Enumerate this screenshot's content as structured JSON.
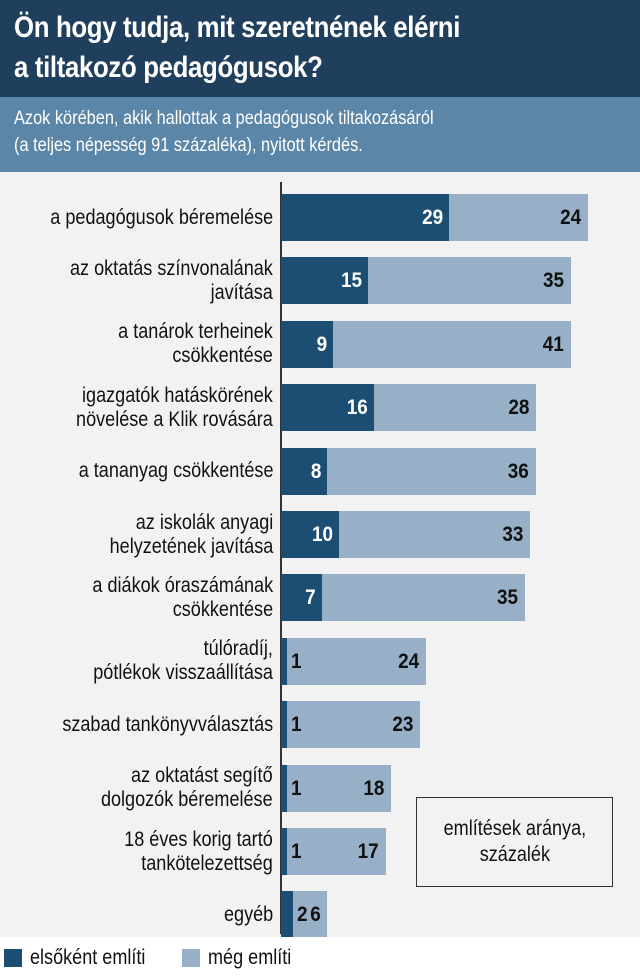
{
  "title_lines": [
    "Ön hogy tudja, mit szeretnének elérni",
    "a tiltakozó pedagógusok?"
  ],
  "subtitle_lines": [
    "Azok körében, akik hallottak a pedagógusok tiltakozásáról",
    "(a teljes népesség 91 százaléka), nyitott kérdés."
  ],
  "note": "említések aránya,\nszázalék",
  "colors": {
    "header": "#1f3f5d",
    "subheader": "#5b86a8",
    "first": "#1c4e74",
    "more": "#97b0c7",
    "background": "#f2f2f2"
  },
  "chart_data": {
    "type": "bar",
    "orientation": "horizontal",
    "stacked": true,
    "categories": [
      "a pedagógusok béremelése",
      "az oktatás színvonalának\njavítása",
      "a tanárok terheinek\ncsökkentése",
      "igazgatók hatáskörének\nnövelése a Klik rovására",
      "a tananyag csökkentése",
      "az iskolák anyagi\nhelyzetének javítása",
      "a diákok óraszámának\ncsökkentése",
      "túlóradíj,\npótlékok visszaállítása",
      "szabad tankönyvválasztás",
      "az oktatást segítő\ndolgozók béremelése",
      "18 éves korig tartó\ntankötelezettség",
      "egyéb"
    ],
    "series": [
      {
        "name": "elsőként említi",
        "values": [
          29,
          15,
          9,
          16,
          8,
          10,
          7,
          1,
          1,
          1,
          1,
          2
        ]
      },
      {
        "name": "még említi",
        "values": [
          24,
          35,
          41,
          28,
          36,
          33,
          35,
          24,
          23,
          18,
          17,
          6
        ]
      }
    ],
    "xlim": [
      0,
      60
    ],
    "legend": "bottom-left",
    "grid": false
  }
}
